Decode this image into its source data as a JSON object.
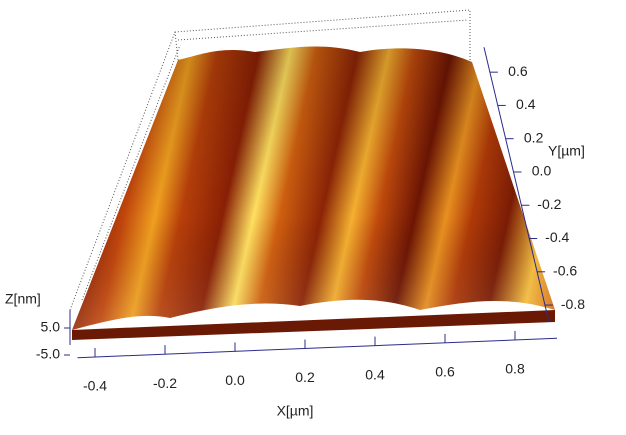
{
  "chart_data": {
    "type": "surface3d",
    "x_label": "X[µm]",
    "y_label": "Y[µm]",
    "z_label": "Z[nm]",
    "xlim": [
      -0.45,
      0.92
    ],
    "xticks": [
      -0.4,
      -0.2,
      {
        "value": 0,
        "label": "0.0"
      },
      0.2,
      0.4,
      0.6,
      0.8
    ],
    "ylim": [
      -0.9,
      0.75
    ],
    "yticks": [
      0.6,
      0.4,
      0.2,
      {
        "value": 0,
        "label": "0.0"
      },
      -0.2,
      -0.4,
      -0.6,
      -0.8
    ],
    "zlim": [
      -6,
      6
    ],
    "zticks": [
      {
        "value": 5,
        "label": "5.0"
      },
      {
        "value": -5,
        "label": "-5.0"
      }
    ]
  }
}
